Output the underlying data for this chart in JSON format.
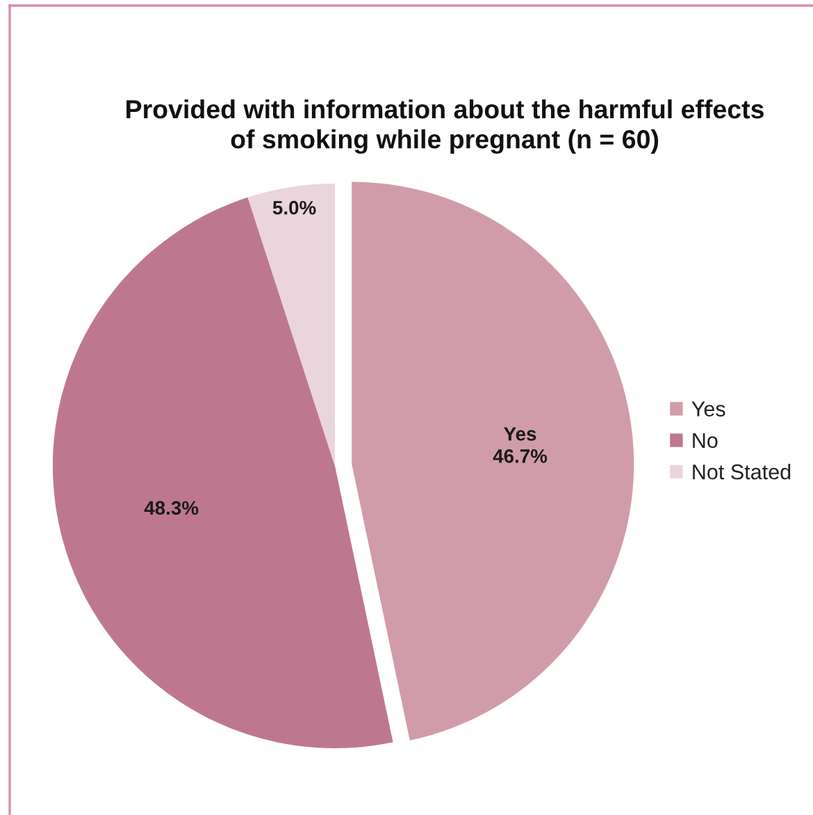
{
  "chart_data": {
    "type": "pie",
    "title": "Provided with information about the harmful effects\nof smoking while pregnant (n = 60)",
    "categories": [
      "Yes",
      "No",
      "Not Stated"
    ],
    "values": [
      46.7,
      48.3,
      5.0
    ],
    "colors": [
      "#d09ca9",
      "#bd7890",
      "#ead5dc"
    ],
    "value_labels": [
      "Yes\n46.7%",
      "48.3%",
      "5.0%"
    ],
    "legend": "right"
  }
}
